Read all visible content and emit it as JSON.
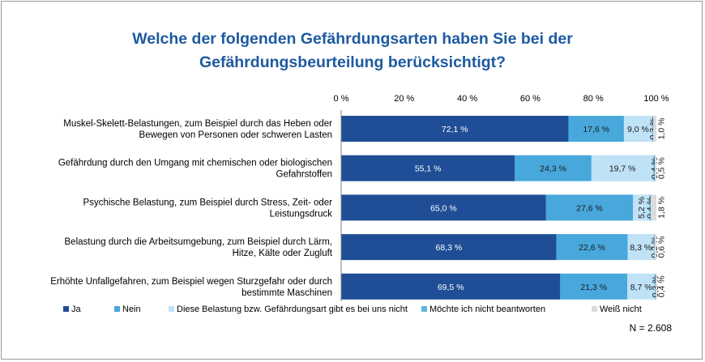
{
  "title_lines": [
    "Welche der folgenden Gefährdungsarten haben Sie bei der",
    "Gefährdungsbeurteilung berücksichtigt?"
  ],
  "sample_size": "N = 2.608",
  "chart_data": {
    "type": "bar",
    "orientation": "horizontal",
    "stacked": true,
    "xlim": [
      0,
      100
    ],
    "x_ticks": [
      "0 %",
      "20 %",
      "40 %",
      "60 %",
      "80 %",
      "100 %"
    ],
    "x_tick_values": [
      0,
      20,
      40,
      60,
      80,
      100
    ],
    "x_axis_position": "top",
    "grid": false,
    "legend_position": "bottom",
    "categories": [
      [
        "Muskel-Skelett-Belastungen, zum Beispiel durch das Heben oder",
        "Bewegen von Personen oder schweren Lasten"
      ],
      [
        "Gefährdung durch den Umgang mit chemischen oder biologischen",
        "Gefahrstoffen"
      ],
      [
        "Psychische Belastung, zum Beispiel durch Stress, Zeit- oder",
        "Leistungsdruck"
      ],
      [
        "Belastung durch die Arbeitsumgebung, zum Beispiel durch Lärm,",
        "Hitze, Kälte oder Zugluft"
      ],
      [
        "Erhöhte Unfallgefahren, zum Beispiel wegen Sturzgefahr oder durch",
        "bestimmte Maschinen"
      ]
    ],
    "series": [
      {
        "name": "Ja",
        "color": "#1f4e96",
        "label_color": "#ffffff",
        "values": [
          72.1,
          55.1,
          65.0,
          68.3,
          69.5
        ],
        "labels": [
          "72,1 %",
          "55,1 %",
          "65,0 %",
          "68,3 %",
          "69,5 %"
        ]
      },
      {
        "name": "Nein",
        "color": "#48a8dc",
        "label_color": "#1a1a1a",
        "values": [
          17.6,
          24.3,
          27.6,
          22.6,
          21.3
        ],
        "labels": [
          "17,6 %",
          "24,3 %",
          "27,6 %",
          "22,6 %",
          "21,3 %"
        ]
      },
      {
        "name": "Diese Belastung bzw. Gefährdungsart gibt es bei uns nicht",
        "color": "#bfe2f6",
        "label_color": "#1a1a1a",
        "values": [
          9.0,
          19.7,
          5.2,
          8.3,
          8.7
        ],
        "labels": [
          "9,0 %",
          "19,7 %",
          "5,2 %",
          "8,3 %",
          "8,7 %"
        ]
      },
      {
        "name": "Möchte ich nicht beantworten",
        "color": "#5fb4e0",
        "label_color": "#1a1a1a",
        "values": [
          0.3,
          0.4,
          0.4,
          0.2,
          0.3
        ],
        "labels": [
          "0,3 %",
          "0,4 %",
          "0,4 %",
          "0,2 %",
          "0,3 %"
        ]
      },
      {
        "name": "Weiß nicht",
        "color": "#dcdcdc",
        "label_color": "#1a1a1a",
        "values": [
          1.0,
          0.5,
          1.8,
          0.6,
          0.4
        ],
        "labels": [
          "1,0 %",
          "0,5 %",
          "1,8 %",
          "0,6 %",
          "0,4 %"
        ]
      }
    ]
  }
}
